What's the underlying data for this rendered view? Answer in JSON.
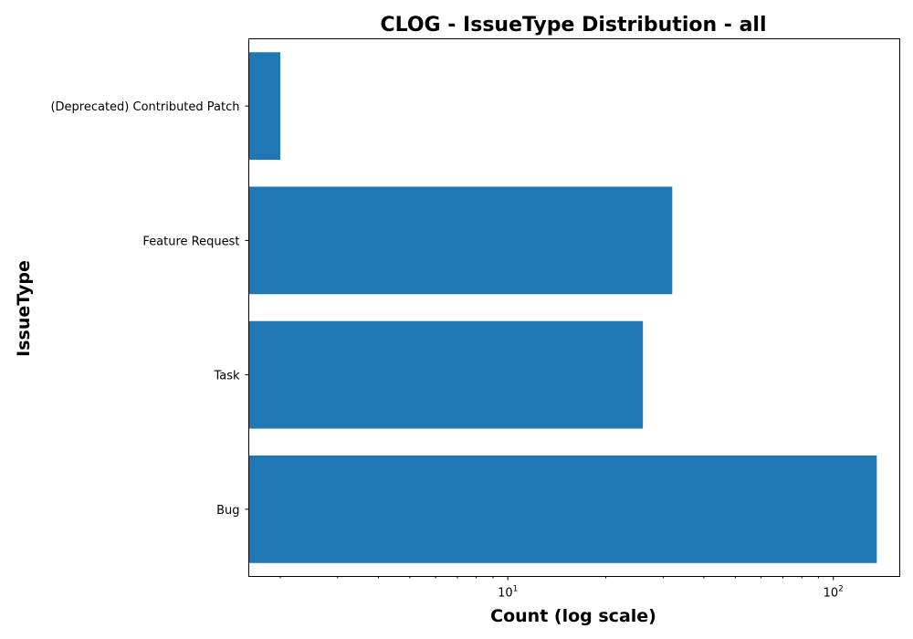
{
  "chart_data": {
    "type": "bar",
    "orientation": "horizontal",
    "title": "CLOG - IssueType Distribution - all",
    "xlabel": "Count (log scale)",
    "ylabel": "IssueType",
    "x_scale": "log",
    "xlim": [
      1.6,
      160
    ],
    "x_ticks": [
      {
        "base": "10",
        "exp": "1",
        "value": 10
      },
      {
        "base": "10",
        "exp": "2",
        "value": 100
      }
    ],
    "categories": [
      "(Deprecated) Contributed Patch",
      "Feature Request",
      "Task",
      "Bug"
    ],
    "values": [
      2,
      32,
      26,
      136
    ],
    "bar_color": "#1f77b4",
    "grid": false,
    "legend": "none"
  }
}
